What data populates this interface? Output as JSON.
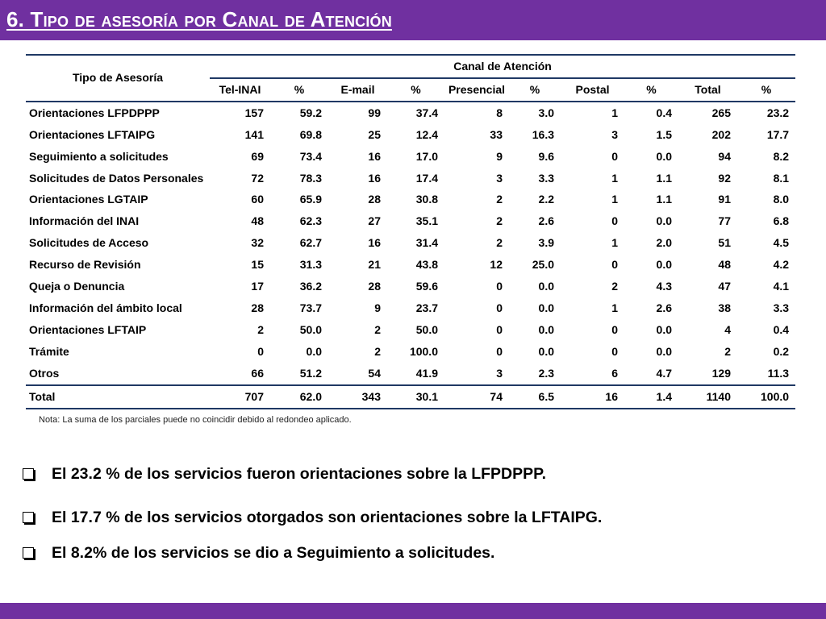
{
  "slide": {
    "title": "6. Tipo de asesoría por Canal de Atención"
  },
  "table": {
    "header_tipo": "Tipo de Asesoría",
    "header_group": "Canal de Atención",
    "columns": [
      "Tel-INAI",
      "%",
      "E-mail",
      "%",
      "Presencial",
      "%",
      "Postal",
      "%",
      "Total",
      "%"
    ],
    "rows": [
      [
        "Orientaciones LFPDPPP",
        "157",
        "59.2",
        "99",
        "37.4",
        "8",
        "3.0",
        "1",
        "0.4",
        "265",
        "23.2"
      ],
      [
        "Orientaciones LFTAIPG",
        "141",
        "69.8",
        "25",
        "12.4",
        "33",
        "16.3",
        "3",
        "1.5",
        "202",
        "17.7"
      ],
      [
        "Seguimiento a solicitudes",
        "69",
        "73.4",
        "16",
        "17.0",
        "9",
        "9.6",
        "0",
        "0.0",
        "94",
        "8.2"
      ],
      [
        "Solicitudes de Datos Personales",
        "72",
        "78.3",
        "16",
        "17.4",
        "3",
        "3.3",
        "1",
        "1.1",
        "92",
        "8.1"
      ],
      [
        "Orientaciones LGTAIP",
        "60",
        "65.9",
        "28",
        "30.8",
        "2",
        "2.2",
        "1",
        "1.1",
        "91",
        "8.0"
      ],
      [
        "Información del INAI",
        "48",
        "62.3",
        "27",
        "35.1",
        "2",
        "2.6",
        "0",
        "0.0",
        "77",
        "6.8"
      ],
      [
        "Solicitudes de Acceso",
        "32",
        "62.7",
        "16",
        "31.4",
        "2",
        "3.9",
        "1",
        "2.0",
        "51",
        "4.5"
      ],
      [
        "Recurso de Revisión",
        "15",
        "31.3",
        "21",
        "43.8",
        "12",
        "25.0",
        "0",
        "0.0",
        "48",
        "4.2"
      ],
      [
        "Queja o Denuncia",
        "17",
        "36.2",
        "28",
        "59.6",
        "0",
        "0.0",
        "2",
        "4.3",
        "47",
        "4.1"
      ],
      [
        "Información del ámbito local",
        "28",
        "73.7",
        "9",
        "23.7",
        "0",
        "0.0",
        "1",
        "2.6",
        "38",
        "3.3"
      ],
      [
        "Orientaciones LFTAIP",
        "2",
        "50.0",
        "2",
        "50.0",
        "0",
        "0.0",
        "0",
        "0.0",
        "4",
        "0.4"
      ],
      [
        "Trámite",
        "0",
        "0.0",
        "2",
        "100.0",
        "0",
        "0.0",
        "0",
        "0.0",
        "2",
        "0.2"
      ],
      [
        "Otros",
        "66",
        "51.2",
        "54",
        "41.9",
        "3",
        "2.3",
        "6",
        "4.7",
        "129",
        "11.3"
      ]
    ],
    "total": [
      "Total",
      "707",
      "62.0",
      "343",
      "30.1",
      "74",
      "6.5",
      "16",
      "1.4",
      "1140",
      "100.0"
    ]
  },
  "note": "Nota: La suma de los parciales puede no coincidir debido al redondeo aplicado.",
  "bullets": [
    "El 23.2 % de los servicios fueron orientaciones sobre la LFPDPPP.",
    "El 17.7 % de los servicios otorgados son orientaciones sobre la LFTAIPG.",
    "El 8.2% de los servicios se dio a Seguimiento a solicitudes."
  ],
  "colors": {
    "accent": "#7030a0",
    "table_rule": "#1f3864"
  }
}
